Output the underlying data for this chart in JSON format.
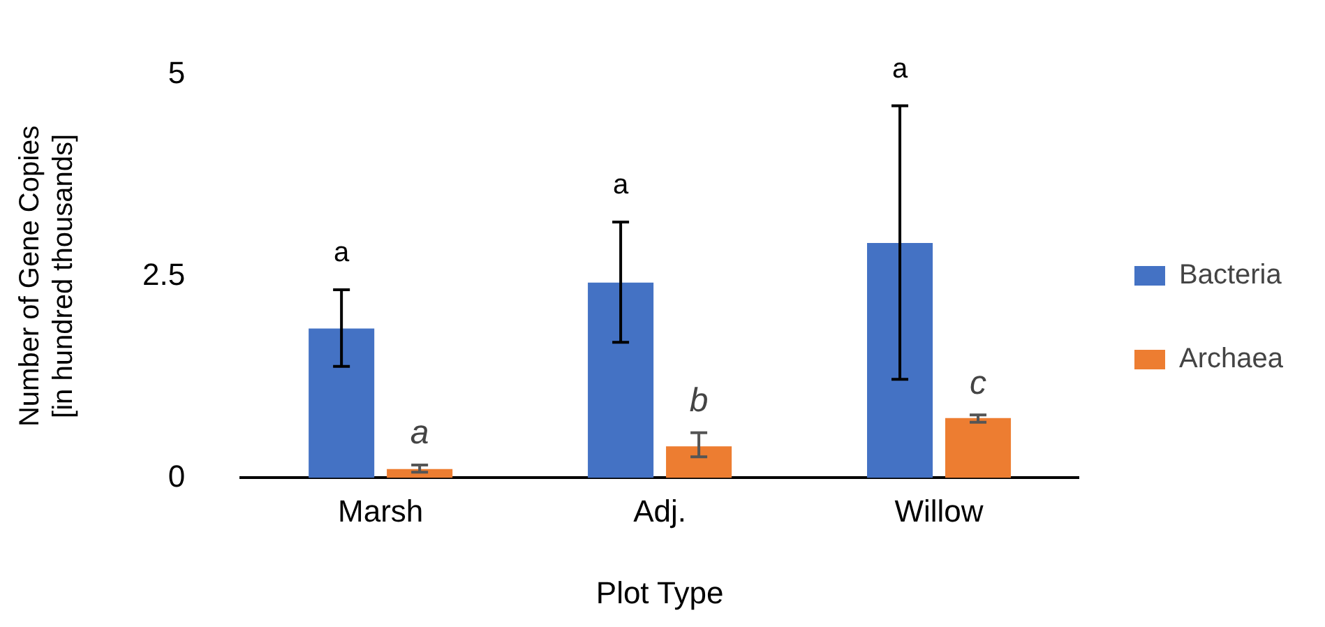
{
  "chart_data": {
    "type": "bar",
    "xlabel": "Plot Type",
    "ylabel": "Number of Gene Copies\n[in hundred thousands]",
    "categories": [
      "Marsh",
      "Adj.",
      "Willow"
    ],
    "series": [
      {
        "name": "Bacteria",
        "color": "#4472c4",
        "values": [
          1.85,
          2.42,
          2.91
        ],
        "errors": [
          [
            1.38,
            2.33
          ],
          [
            1.68,
            3.17
          ],
          [
            1.22,
            4.61
          ]
        ]
      },
      {
        "name": "Archaea",
        "color": "#ed7d31",
        "values": [
          0.11,
          0.39,
          0.74
        ],
        "errors": [
          [
            0.07,
            0.16
          ],
          [
            0.26,
            0.56
          ],
          [
            0.69,
            0.78
          ]
        ]
      }
    ],
    "ylim": [
      0,
      5
    ],
    "yticks": [
      0,
      2.5,
      5
    ],
    "grid": false,
    "legend": "right",
    "annotations": [
      "a",
      "a",
      "a",
      {
        "text": "a",
        "x": "Marsh",
        "y": 0.16
      },
      {
        "text": "b",
        "x": "Adj.",
        "y": 0.56
      },
      {
        "text": "c",
        "x": "Willow",
        "y": 0.78
      }
    ]
  }
}
